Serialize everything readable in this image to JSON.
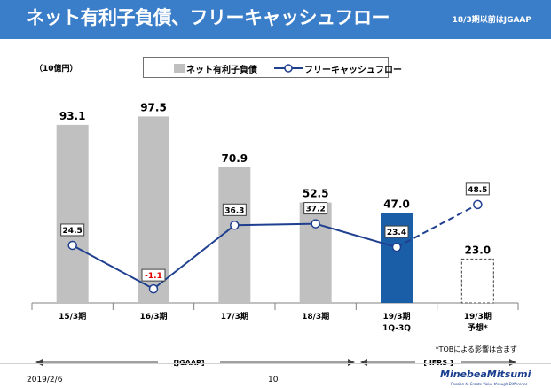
{
  "header": {
    "title": "ネット有利子負債、フリーキャッシュフロー",
    "note": "18/3期以前はJGAAP"
  },
  "legend": {
    "bar_label": "ネット有利子負債",
    "line_label": "フリーキャッシュフロー"
  },
  "footnote": "*TOBによる影響は含まず",
  "segments": {
    "jgaap": "[JGAAP]",
    "ifrs": "[ IFRS ]"
  },
  "footer": {
    "date": "2019/2/6",
    "page": "10",
    "brand": "MinebeaMitsumi",
    "tagline": "Passion to Create Value through Difference"
  },
  "colors": {
    "header": "#3a7dc9",
    "bar_gray": "#c0c0c0",
    "bar_blue": "#1a5ea8",
    "line": "#1f3f8f",
    "negative": "#e00000"
  },
  "chart_data": {
    "type": "bar",
    "title": "ネット有利子負債、フリーキャッシュフロー",
    "unit_label": "（10億円）",
    "categories": [
      "15/3期",
      "16/3期",
      "17/3期",
      "18/3期",
      "19/3期\n1Q-3Q",
      "19/3期\n予想*"
    ],
    "series": [
      {
        "name": "ネット有利子負債",
        "type": "bar",
        "values": [
          93.1,
          97.5,
          70.9,
          52.5,
          47.0,
          23.0
        ],
        "styles": [
          "gray",
          "gray",
          "gray",
          "gray",
          "blue",
          "dashed"
        ]
      },
      {
        "name": "フリーキャッシュフロー",
        "type": "line",
        "values": [
          24.5,
          -1.1,
          36.3,
          37.2,
          23.4,
          48.5
        ],
        "styles": [
          "solid",
          "solid",
          "solid",
          "solid",
          "solid",
          "dashed"
        ]
      }
    ],
    "bar_labels": [
      "93.1",
      "97.5",
      "70.9",
      "52.5",
      "47.0",
      "23.0"
    ],
    "line_labels": [
      "24.5",
      "-1.1",
      "36.3",
      "37.2",
      "23.4",
      "48.5"
    ],
    "ylim_bar": [
      0,
      100
    ],
    "ylim_line": [
      -5,
      100
    ],
    "grid": false,
    "legend_position": "top"
  }
}
